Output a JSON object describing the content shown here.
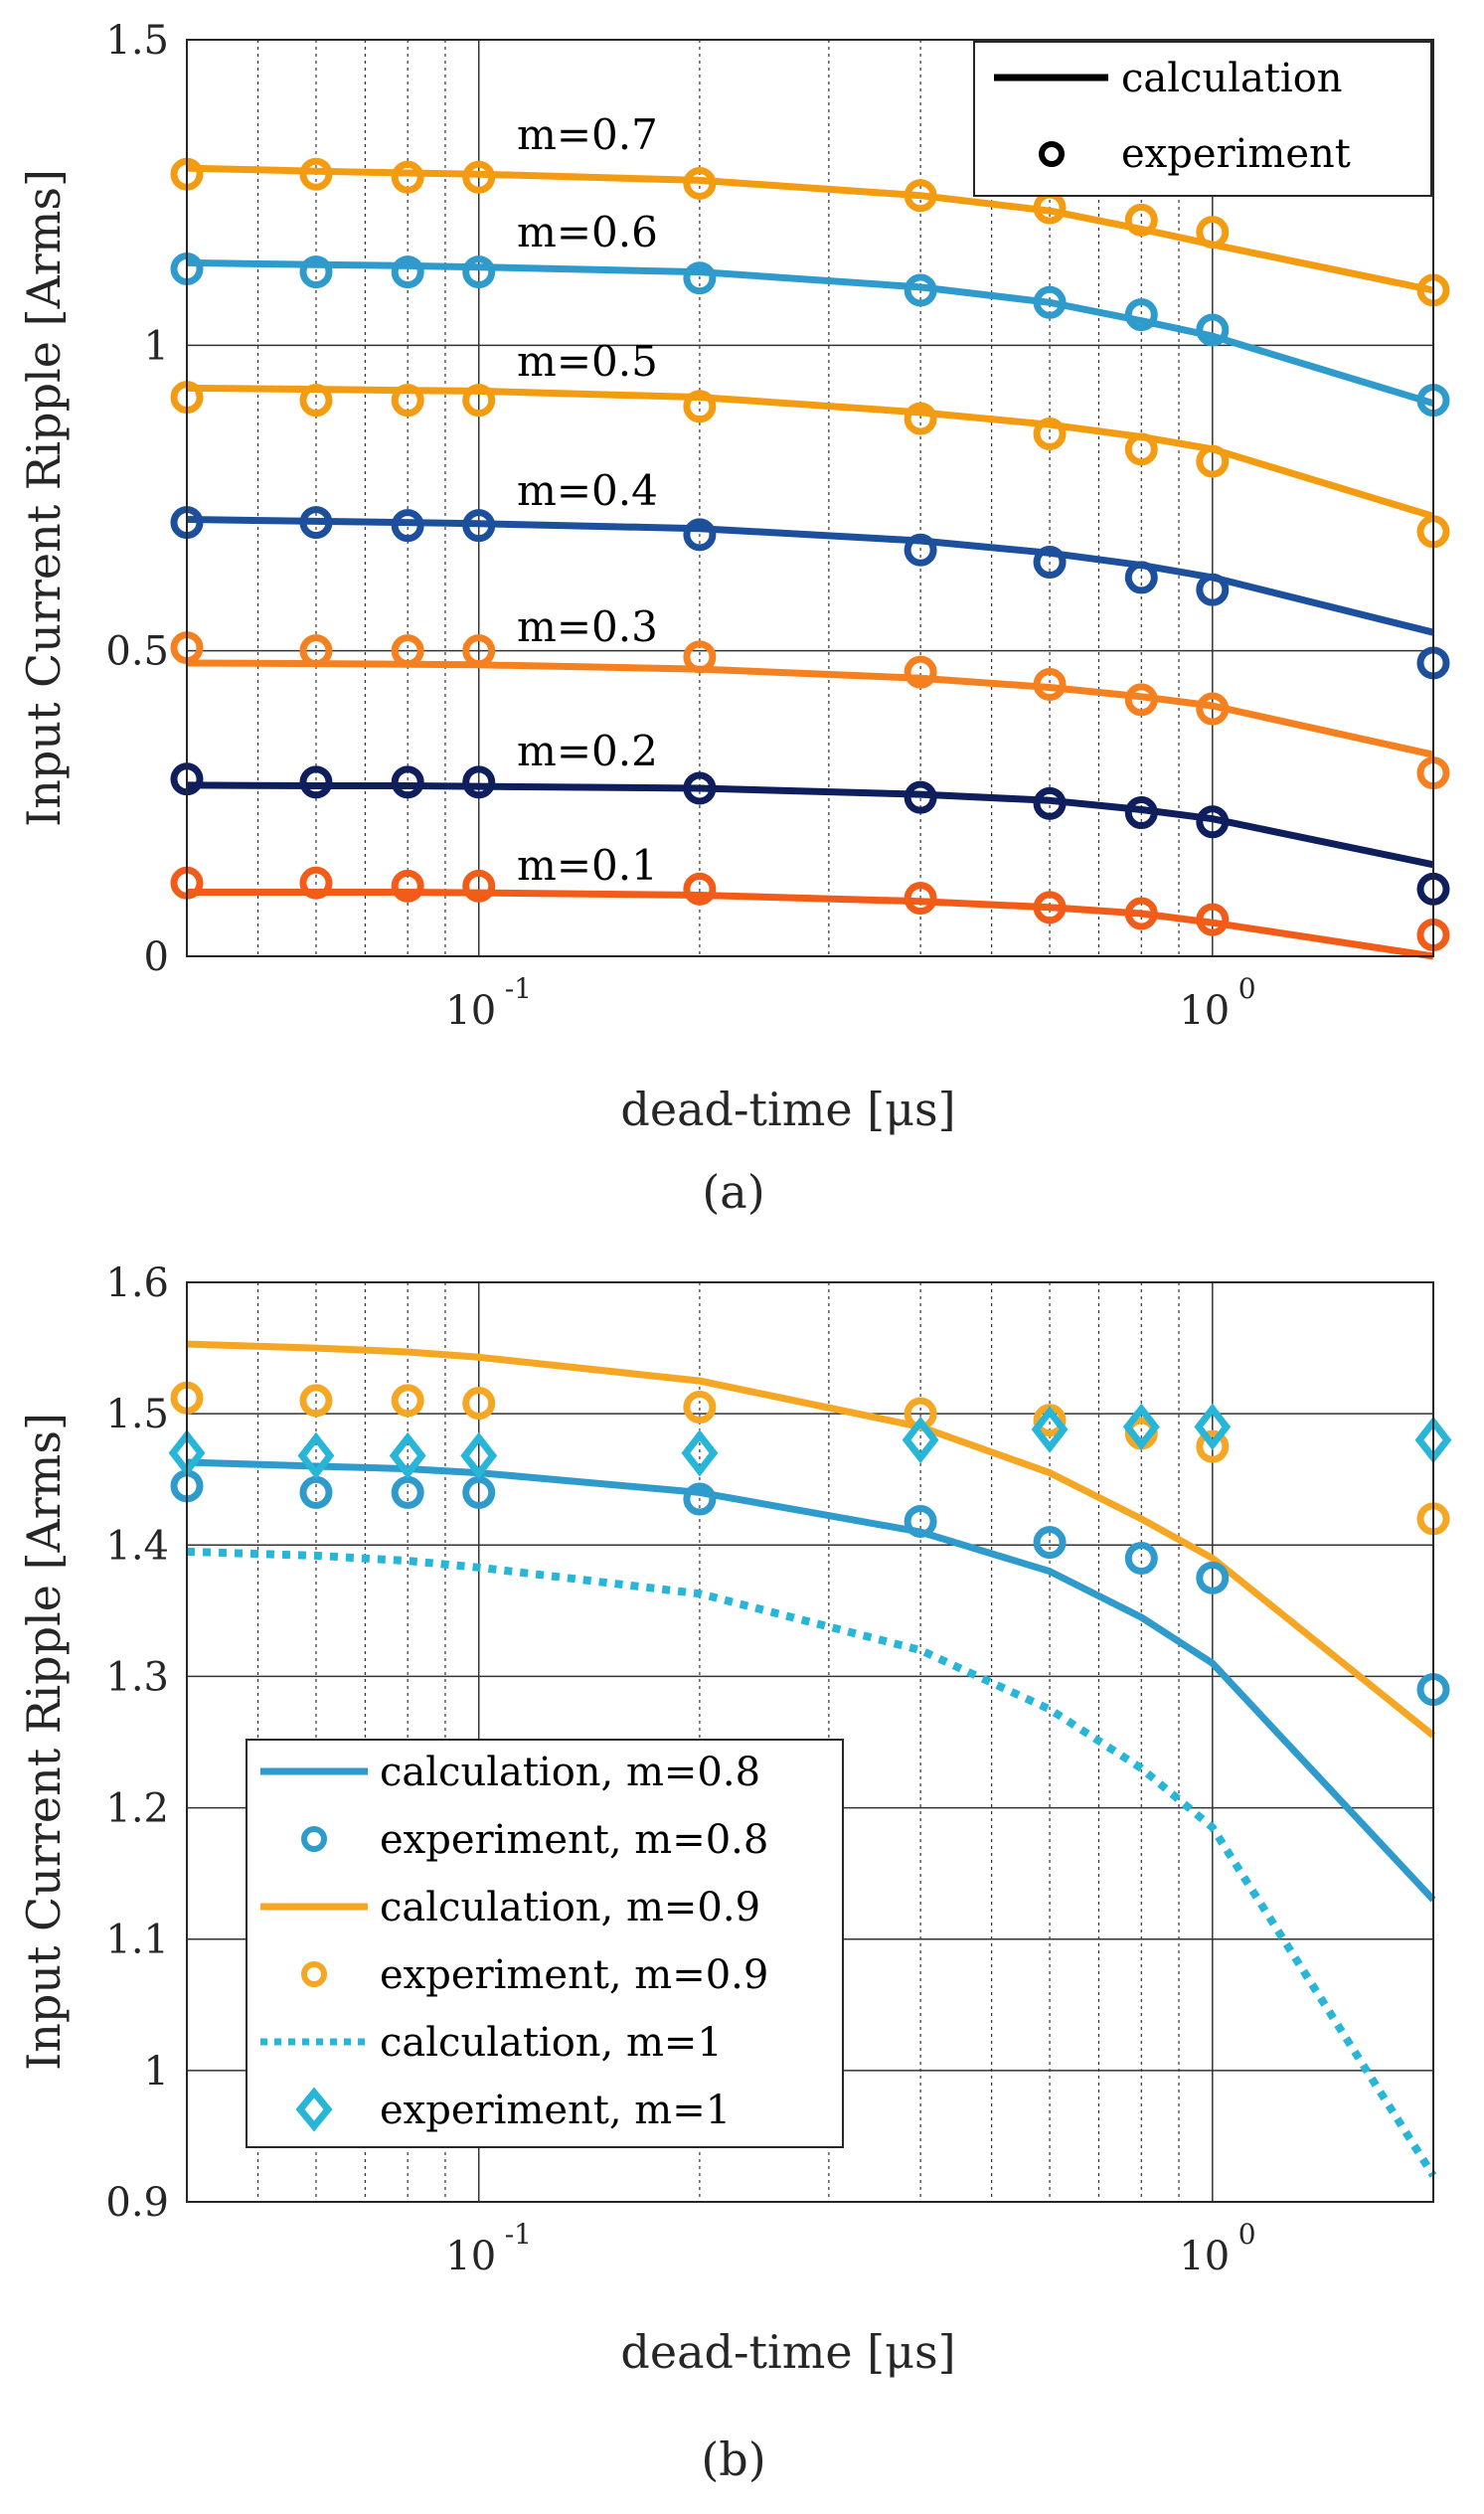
{
  "chart_data": [
    {
      "type": "line",
      "panel_caption": "(a)",
      "xlabel": "dead-time [μs]",
      "ylabel": "Input Current Ripple [Arms]",
      "xscale": "log",
      "xlim": [
        0.04,
        2
      ],
      "ylim": [
        0,
        1.5
      ],
      "yticks": [
        "0",
        "0.5",
        "1",
        "1.5"
      ],
      "xticks": [
        {
          "base": "10",
          "exp": "-1"
        },
        {
          "base": "10",
          "exp": "0"
        }
      ],
      "grid": true,
      "legend": {
        "position": "top-right",
        "entries": [
          {
            "label": "calculation",
            "style": "line",
            "color": "#000000"
          },
          {
            "label": "experiment",
            "style": "marker",
            "color": "#000000"
          }
        ]
      },
      "x": [
        0.04,
        0.06,
        0.08,
        0.1,
        0.2,
        0.4,
        0.6,
        0.8,
        1.0,
        2.0
      ],
      "series": [
        {
          "name": "m=0.7",
          "color": "#F39C12",
          "calc": [
            1.29,
            1.285,
            1.282,
            1.28,
            1.27,
            1.245,
            1.22,
            1.19,
            1.165,
            1.09
          ],
          "exp": [
            1.28,
            1.28,
            1.275,
            1.275,
            1.265,
            1.245,
            1.225,
            1.205,
            1.185,
            1.09
          ]
        },
        {
          "name": "m=0.6",
          "color": "#2E9BCC",
          "calc": [
            1.135,
            1.132,
            1.13,
            1.128,
            1.12,
            1.095,
            1.07,
            1.04,
            1.015,
            0.905
          ],
          "exp": [
            1.125,
            1.12,
            1.12,
            1.12,
            1.11,
            1.09,
            1.07,
            1.05,
            1.025,
            0.91
          ]
        },
        {
          "name": "m=0.5",
          "color": "#F39C12",
          "calc": [
            0.93,
            0.928,
            0.926,
            0.925,
            0.915,
            0.89,
            0.87,
            0.85,
            0.83,
            0.72
          ],
          "exp": [
            0.915,
            0.91,
            0.91,
            0.91,
            0.9,
            0.88,
            0.855,
            0.83,
            0.81,
            0.695
          ]
        },
        {
          "name": "m=0.4",
          "color": "#1C4F9C",
          "calc": [
            0.715,
            0.712,
            0.71,
            0.708,
            0.7,
            0.68,
            0.66,
            0.64,
            0.62,
            0.53
          ],
          "exp": [
            0.71,
            0.71,
            0.705,
            0.705,
            0.69,
            0.665,
            0.645,
            0.62,
            0.6,
            0.48
          ]
        },
        {
          "name": "m=0.3",
          "color": "#F4801F",
          "calc": [
            0.48,
            0.479,
            0.478,
            0.477,
            0.47,
            0.455,
            0.44,
            0.425,
            0.41,
            0.33
          ],
          "exp": [
            0.505,
            0.5,
            0.5,
            0.5,
            0.49,
            0.465,
            0.445,
            0.42,
            0.405,
            0.3
          ]
        },
        {
          "name": "m=0.2",
          "color": "#0F1E5C",
          "calc": [
            0.28,
            0.279,
            0.279,
            0.278,
            0.275,
            0.265,
            0.255,
            0.24,
            0.225,
            0.15
          ],
          "exp": [
            0.29,
            0.285,
            0.285,
            0.285,
            0.275,
            0.26,
            0.25,
            0.235,
            0.22,
            0.11
          ]
        },
        {
          "name": "m=0.1",
          "color": "#F25C19",
          "calc": [
            0.105,
            0.105,
            0.105,
            0.104,
            0.1,
            0.09,
            0.08,
            0.07,
            0.055,
            0.0
          ],
          "exp": [
            0.12,
            0.12,
            0.115,
            0.115,
            0.11,
            0.095,
            0.08,
            0.07,
            0.06,
            0.035
          ]
        }
      ]
    },
    {
      "type": "line",
      "panel_caption": "(b)",
      "xlabel": "dead-time [μs]",
      "ylabel": "Input Current Ripple [Arms]",
      "xscale": "log",
      "xlim": [
        0.04,
        2
      ],
      "ylim": [
        0.9,
        1.6
      ],
      "yticks": [
        "0.9",
        "1",
        "1.1",
        "1.2",
        "1.3",
        "1.4",
        "1.5",
        "1.6"
      ],
      "xticks": [
        {
          "base": "10",
          "exp": "-1"
        },
        {
          "base": "10",
          "exp": "0"
        }
      ],
      "grid": true,
      "legend": {
        "position": "bottom-left",
        "entries": [
          {
            "label": "calculation, m=0.8",
            "style": "line",
            "color": "#2E9BCC"
          },
          {
            "label": "experiment, m=0.8",
            "style": "circle",
            "color": "#2E9BCC"
          },
          {
            "label": "calculation, m=0.9",
            "style": "line",
            "color": "#F5A623"
          },
          {
            "label": "experiment, m=0.9",
            "style": "circle",
            "color": "#F5A623"
          },
          {
            "label": "calculation, m=1",
            "style": "dotted",
            "color": "#27B6D8"
          },
          {
            "label": "experiment, m=1",
            "style": "diamond",
            "color": "#27B6D8"
          }
        ]
      },
      "x": [
        0.04,
        0.06,
        0.08,
        0.1,
        0.2,
        0.4,
        0.6,
        0.8,
        1.0,
        2.0
      ],
      "series": [
        {
          "name": "m=0.8",
          "color": "#2E9BCC",
          "calc_style": "solid",
          "calc": [
            1.463,
            1.46,
            1.458,
            1.455,
            1.44,
            1.41,
            1.38,
            1.345,
            1.31,
            1.13
          ],
          "exp_marker": "circle",
          "exp": [
            1.445,
            1.44,
            1.44,
            1.44,
            1.435,
            1.418,
            1.402,
            1.39,
            1.375,
            1.29
          ]
        },
        {
          "name": "m=0.9",
          "color": "#F5A623",
          "calc_style": "solid",
          "calc": [
            1.553,
            1.55,
            1.547,
            1.543,
            1.525,
            1.49,
            1.455,
            1.42,
            1.39,
            1.255
          ],
          "exp_marker": "circle",
          "exp": [
            1.512,
            1.51,
            1.51,
            1.508,
            1.505,
            1.5,
            1.495,
            1.485,
            1.475,
            1.42
          ]
        },
        {
          "name": "m=1",
          "color": "#27B6D8",
          "calc_style": "dotted",
          "calc": [
            1.395,
            1.392,
            1.388,
            1.383,
            1.363,
            1.32,
            1.275,
            1.23,
            1.185,
            0.92
          ],
          "exp_marker": "diamond",
          "exp": [
            1.47,
            1.468,
            1.468,
            1.468,
            1.47,
            1.48,
            1.488,
            1.49,
            1.49,
            1.48
          ]
        }
      ]
    }
  ]
}
